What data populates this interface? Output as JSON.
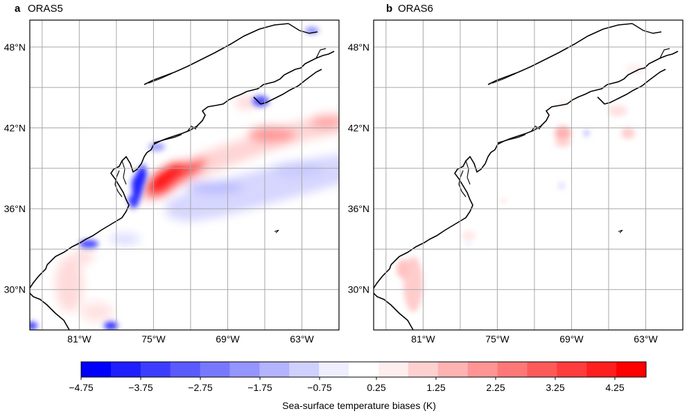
{
  "panels": [
    {
      "letter": "a",
      "name": "ORAS5",
      "x_ticks": [
        "81°W",
        "75°W",
        "69°W",
        "63°W"
      ],
      "y_ticks": [
        "48°N",
        "42°N",
        "36°N",
        "30°N"
      ]
    },
    {
      "letter": "b",
      "name": "ORAS6",
      "x_ticks": [
        "81°W",
        "75°W",
        "69°W",
        "63°W"
      ],
      "y_ticks": [
        "48°N",
        "42°N",
        "36°N",
        "30°N"
      ]
    }
  ],
  "colorbar": {
    "label": "Sea-surface temperature biases (K)",
    "tick_labels": [
      "−4.75",
      "−3.75",
      "−2.75",
      "−1.75",
      "−0.75",
      "0.25",
      "1.25",
      "2.25",
      "3.25",
      "4.25"
    ],
    "colors": [
      "#0000ff",
      "#1f1fff",
      "#3d3dff",
      "#5a5aff",
      "#7878ff",
      "#9595ff",
      "#b3b3ff",
      "#d0d0ff",
      "#eeeeff",
      "#ffffff",
      "#ffeeee",
      "#ffd0d0",
      "#ffb3b3",
      "#ff9595",
      "#ff7878",
      "#ff5a5a",
      "#ff3d3d",
      "#ff1f1f",
      "#ff0000"
    ]
  },
  "chart_data": [
    {
      "type": "heatmap",
      "title": "ORAS5",
      "x_axis": {
        "range_lon": [
          -85,
          -60
        ],
        "ticks_lon": [
          -81,
          -75,
          -69,
          -63
        ]
      },
      "y_axis": {
        "range_lat": [
          27,
          50
        ],
        "ticks_lat": [
          48,
          42,
          36,
          30
        ]
      },
      "grid": true,
      "colorbar_range": [
        -4.75,
        4.75
      ],
      "features": [
        {
          "lon": -74.5,
          "lat": 37.5,
          "bias": 4.5
        },
        {
          "lon": -73.0,
          "lat": 38.0,
          "bias": 3.5
        },
        {
          "lon": -71.5,
          "lat": 38.8,
          "bias": 2.0
        },
        {
          "lon": -65.5,
          "lat": 41.5,
          "bias": 1.5
        },
        {
          "lon": -62.0,
          "lat": 42.3,
          "bias": 1.2
        },
        {
          "lon": -68.0,
          "lat": 40.5,
          "bias": 0.9
        },
        {
          "lon": -75.5,
          "lat": 37.5,
          "bias": -4.5
        },
        {
          "lon": -75.2,
          "lat": 36.3,
          "bias": -3.5
        },
        {
          "lon": -66.0,
          "lat": 43.8,
          "bias": -2.5
        },
        {
          "lon": -79.5,
          "lat": 33.2,
          "bias": -3.0
        },
        {
          "lon": -79.0,
          "lat": 31.5,
          "bias": -1.5
        },
        {
          "lon": -77.5,
          "lat": 27.2,
          "bias": -2.5
        },
        {
          "lon": -84.5,
          "lat": 27.3,
          "bias": -2.5
        },
        {
          "lon": -68.0,
          "lat": 37.2,
          "bias": -1.2
        },
        {
          "lon": -65.5,
          "lat": 38.5,
          "bias": -1.0
        },
        {
          "lon": -71.0,
          "lat": 35.6,
          "bias": -0.5
        },
        {
          "lon": -81.0,
          "lat": 30.5,
          "bias": 0.5
        },
        {
          "lon": -78.5,
          "lat": 28.5,
          "bias": 0.4
        }
      ]
    },
    {
      "type": "heatmap",
      "title": "ORAS6",
      "x_axis": {
        "range_lon": [
          -85,
          -60
        ],
        "ticks_lon": [
          -81,
          -75,
          -69,
          -63
        ]
      },
      "y_axis": {
        "range_lat": [
          27,
          50
        ],
        "ticks_lat": [
          48,
          42,
          36,
          30
        ]
      },
      "grid": true,
      "colorbar_range": [
        -4.75,
        4.75
      ],
      "features": [
        {
          "lon": -70.0,
          "lat": 41.4,
          "bias": 0.9
        },
        {
          "lon": -66.0,
          "lat": 43.5,
          "bias": 0.4
        },
        {
          "lon": -63.5,
          "lat": 41.5,
          "bias": 0.5
        },
        {
          "lon": -68.0,
          "lat": 41.3,
          "bias": -0.8
        },
        {
          "lon": -71.3,
          "lat": 37.6,
          "bias": -0.4
        },
        {
          "lon": -81.0,
          "lat": 30.5,
          "bias": 0.6
        },
        {
          "lon": -75.0,
          "lat": 34.8,
          "bias": 0.3
        }
      ]
    }
  ]
}
